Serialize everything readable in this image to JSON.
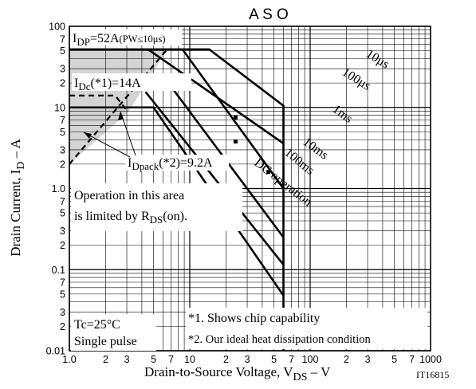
{
  "chart_data": {
    "type": "line",
    "title": "A S O",
    "xlabel": "Drain-to-Source Voltage, V",
    "xlabel_sub": "DS",
    "xlabel_suffix": " – V",
    "ylabel": "Drain Current, I",
    "ylabel_sub": "D",
    "ylabel_suffix": " – A",
    "x_scale": "log",
    "y_scale": "log",
    "xlim": [
      1,
      1000
    ],
    "ylim": [
      0.01,
      100
    ],
    "grid": true,
    "x_tick_labels": [
      {
        "v": 1,
        "t": "1.0"
      },
      {
        "v": 2,
        "t": "2"
      },
      {
        "v": 3,
        "t": "3"
      },
      {
        "v": 5,
        "t": "5"
      },
      {
        "v": 7,
        "t": "7"
      },
      {
        "v": 10,
        "t": "10"
      },
      {
        "v": 20,
        "t": "2"
      },
      {
        "v": 30,
        "t": "3"
      },
      {
        "v": 50,
        "t": "5"
      },
      {
        "v": 70,
        "t": "7"
      },
      {
        "v": 100,
        "t": "100"
      },
      {
        "v": 200,
        "t": "2"
      },
      {
        "v": 300,
        "t": "3"
      },
      {
        "v": 500,
        "t": "5"
      },
      {
        "v": 700,
        "t": "7"
      },
      {
        "v": 1000,
        "t": "1000"
      }
    ],
    "y_tick_labels": [
      {
        "v": 100,
        "t": "100"
      },
      {
        "v": 70,
        "t": "7"
      },
      {
        "v": 50,
        "t": "5"
      },
      {
        "v": 30,
        "t": "3"
      },
      {
        "v": 20,
        "t": "2"
      },
      {
        "v": 10,
        "t": "10"
      },
      {
        "v": 7,
        "t": "7"
      },
      {
        "v": 5,
        "t": "5"
      },
      {
        "v": 3,
        "t": "3"
      },
      {
        "v": 2,
        "t": "2"
      },
      {
        "v": 1,
        "t": "1.0"
      },
      {
        "v": 0.7,
        "t": "7"
      },
      {
        "v": 0.5,
        "t": "5"
      },
      {
        "v": 0.3,
        "t": "3"
      },
      {
        "v": 0.2,
        "t": "2"
      },
      {
        "v": 0.1,
        "t": "0.1"
      },
      {
        "v": 0.07,
        "t": "7"
      },
      {
        "v": 0.05,
        "t": "5"
      },
      {
        "v": 0.03,
        "t": "3"
      },
      {
        "v": 0.02,
        "t": "2"
      },
      {
        "v": 0.01,
        "t": "0.01"
      }
    ],
    "series": [
      {
        "name": "10μs",
        "points": [
          [
            1,
            52
          ],
          [
            14.5,
            52
          ],
          [
            60,
            10.5
          ],
          [
            60,
            0.01
          ]
        ],
        "dashed": false
      },
      {
        "name": "100μs",
        "points": [
          [
            4.5,
            52
          ],
          [
            60,
            3.6
          ]
        ],
        "dashed": false
      },
      {
        "name": "1ms",
        "points": [
          [
            8.7,
            52
          ],
          [
            60,
            1.0
          ]
        ],
        "dashed": false
      },
      {
        "name": "10ms",
        "points": [
          [
            6.2,
            23
          ],
          [
            60,
            0.25
          ]
        ],
        "dashed": false
      },
      {
        "name": "100ms",
        "points": [
          [
            4.3,
            15.5
          ],
          [
            60,
            0.115
          ]
        ],
        "dashed": false
      },
      {
        "name": "DC operation",
        "points": [
          [
            1,
            10
          ],
          [
            5,
            10
          ],
          [
            60,
            0.048
          ]
        ],
        "dashed": false
      },
      {
        "name": "R_DS(on) limit",
        "points": [
          [
            1,
            2.0
          ],
          [
            6.5,
            52
          ]
        ],
        "dashed": true
      },
      {
        "name": "I_Dc limit",
        "points": [
          [
            1,
            14
          ],
          [
            2.4,
            14
          ],
          [
            3.0,
            9.2
          ]
        ],
        "dashed": true
      }
    ],
    "markers": [
      [
        24,
        7.5
      ],
      [
        24,
        3.8
      ],
      [
        25,
        0.35
      ],
      [
        45,
        1.6
      ]
    ],
    "limited_area": [
      [
        1,
        52
      ],
      [
        1,
        2.0
      ],
      [
        3.1,
        8.8
      ],
      [
        6.5,
        52
      ]
    ],
    "annotations": {
      "idp_main": "I",
      "idp_sub": "DP",
      "idp_value": "=52A",
      "idp_cond": "(PW≤10μs)",
      "idc_main": "I",
      "idc_sub": "Dc",
      "idc_value": "(*1)=14A",
      "idpack_main": "I",
      "idpack_sub": "Dpack",
      "idpack_value": "(*2)=9.2A",
      "area_line1": "Operation in this area",
      "area_line2": "is limited by R",
      "area_line2_sub": "DS",
      "area_line2_suffix": "(on).",
      "label_10us": "10μs",
      "label_100us": "100μs",
      "label_1ms": "1ms",
      "label_10ms": "10ms",
      "label_100ms": "100ms",
      "label_dc": "DC operation",
      "tc": "Tc=25°C",
      "single_pulse": "Single pulse",
      "note1": "*1. Shows chip capability",
      "note2": "*2. Our ideal heat dissipation condition",
      "fig_id": "IT16815"
    }
  }
}
